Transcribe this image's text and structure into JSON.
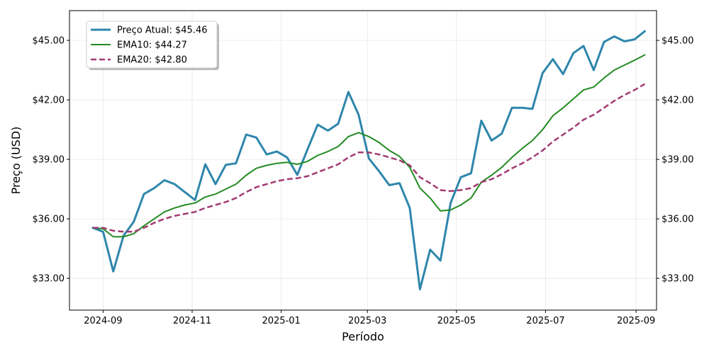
{
  "chart_data": {
    "type": "line",
    "title": "",
    "xlabel": "Período",
    "ylabel": "Preço (USD)",
    "ylim": [
      31.4,
      46.5
    ],
    "xlim": [
      "2024-08-09",
      "2025-09-15"
    ],
    "y_ticks": [
      33,
      36,
      39,
      42,
      45
    ],
    "y_tick_labels": [
      "$33.00",
      "$36.00",
      "$39.00",
      "$42.00",
      "$45.00"
    ],
    "x_ticks": [
      "2024-09-01",
      "2024-11-01",
      "2025-01-01",
      "2025-03-01",
      "2025-05-01",
      "2025-07-01",
      "2025-09-01"
    ],
    "x_tick_labels": [
      "2024-09",
      "2024-11",
      "2025-01",
      "2025-03",
      "2025-05",
      "2025-07",
      "2025-09"
    ],
    "grid": true,
    "right_axis_mirror": true,
    "legend_position": "top-left",
    "x": [
      "2024-08-25",
      "2024-09-01",
      "2024-09-08",
      "2024-09-15",
      "2024-09-22",
      "2024-09-29",
      "2024-10-06",
      "2024-10-13",
      "2024-10-20",
      "2024-10-27",
      "2024-11-03",
      "2024-11-10",
      "2024-11-17",
      "2024-11-24",
      "2024-12-01",
      "2024-12-08",
      "2024-12-15",
      "2024-12-22",
      "2024-12-29",
      "2025-01-05",
      "2025-01-12",
      "2025-01-19",
      "2025-01-26",
      "2025-02-02",
      "2025-02-09",
      "2025-02-16",
      "2025-02-23",
      "2025-03-02",
      "2025-03-09",
      "2025-03-16",
      "2025-03-23",
      "2025-03-30",
      "2025-04-06",
      "2025-04-13",
      "2025-04-20",
      "2025-04-27",
      "2025-05-04",
      "2025-05-11",
      "2025-05-18",
      "2025-05-25",
      "2025-06-01",
      "2025-06-08",
      "2025-06-15",
      "2025-06-22",
      "2025-06-29",
      "2025-07-06",
      "2025-07-13",
      "2025-07-20",
      "2025-07-27",
      "2025-08-03",
      "2025-08-10",
      "2025-08-17",
      "2025-08-24",
      "2025-08-31",
      "2025-09-07"
    ],
    "series": [
      {
        "name": "Preço Atual: $45.46",
        "color": "#2e86ab",
        "dash": "solid",
        "values": [
          35.55,
          35.35,
          33.35,
          35.15,
          35.85,
          37.25,
          37.55,
          37.95,
          37.75,
          37.35,
          36.95,
          38.75,
          37.75,
          38.72,
          38.8,
          40.25,
          40.1,
          39.25,
          39.4,
          39.1,
          38.22,
          39.5,
          40.75,
          40.45,
          40.8,
          42.4,
          41.25,
          39.05,
          38.4,
          37.7,
          37.8,
          36.55,
          32.45,
          34.45,
          33.9,
          36.8,
          38.1,
          38.3,
          40.95,
          39.95,
          40.3,
          41.6,
          41.6,
          41.55,
          43.35,
          44.05,
          43.3,
          44.35,
          44.72,
          43.5,
          44.92,
          45.2,
          44.95,
          45.05,
          45.46
        ]
      },
      {
        "name": "EMA10: $44.27",
        "color": "#228b22",
        "dash": "solid",
        "values": [
          35.55,
          35.5,
          35.1,
          35.1,
          35.25,
          35.65,
          36.0,
          36.35,
          36.55,
          36.7,
          36.8,
          37.1,
          37.25,
          37.5,
          37.75,
          38.2,
          38.55,
          38.7,
          38.8,
          38.85,
          38.75,
          38.9,
          39.2,
          39.4,
          39.65,
          40.15,
          40.35,
          40.15,
          39.85,
          39.45,
          39.15,
          38.6,
          37.55,
          37.05,
          36.4,
          36.45,
          36.7,
          37.05,
          37.85,
          38.2,
          38.6,
          39.1,
          39.55,
          39.95,
          40.5,
          41.2,
          41.6,
          42.05,
          42.5,
          42.65,
          43.1,
          43.5,
          43.75,
          44.0,
          44.27
        ]
      },
      {
        "name": "EMA20: $42.80",
        "color": "#a23b72",
        "dash": "dashed",
        "values": [
          35.55,
          35.55,
          35.4,
          35.35,
          35.35,
          35.55,
          35.8,
          36.0,
          36.15,
          36.25,
          36.35,
          36.55,
          36.7,
          36.85,
          37.05,
          37.35,
          37.6,
          37.75,
          37.9,
          38.0,
          38.05,
          38.15,
          38.35,
          38.55,
          38.75,
          39.1,
          39.35,
          39.35,
          39.25,
          39.1,
          38.95,
          38.7,
          38.1,
          37.8,
          37.45,
          37.4,
          37.45,
          37.55,
          37.85,
          38.0,
          38.25,
          38.55,
          38.8,
          39.1,
          39.45,
          39.9,
          40.25,
          40.6,
          41.0,
          41.25,
          41.6,
          41.95,
          42.25,
          42.5,
          42.8
        ]
      }
    ]
  }
}
